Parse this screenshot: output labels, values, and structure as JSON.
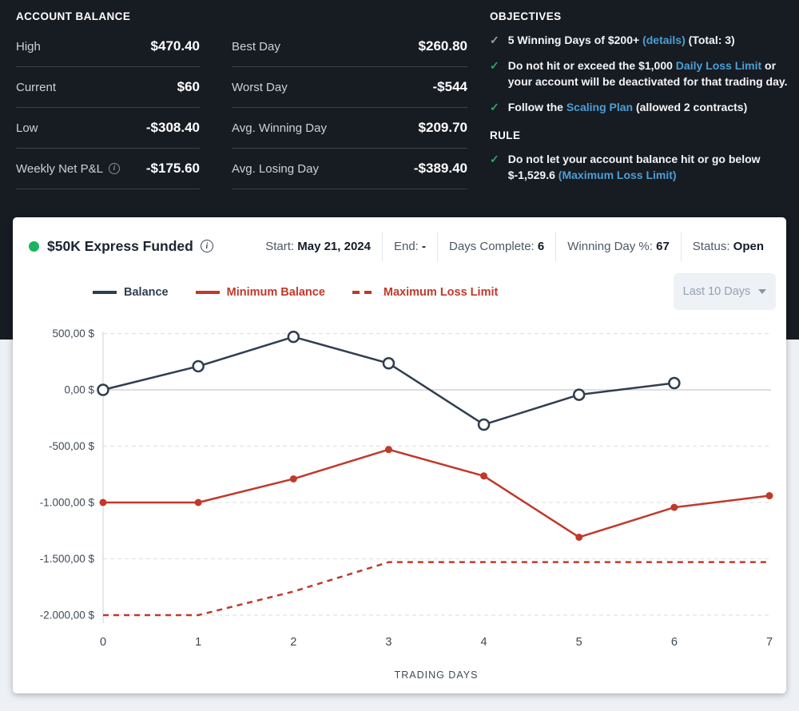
{
  "account_balance": {
    "title": "ACCOUNT BALANCE",
    "left_rows": [
      {
        "label": "High",
        "value": "$470.40"
      },
      {
        "label": "Current",
        "value": "$60"
      },
      {
        "label": "Low",
        "value": "-$308.40"
      },
      {
        "label": "Weekly Net P&L",
        "value": "-$175.60"
      }
    ],
    "right_rows": [
      {
        "label": "Best Day",
        "value": "$260.80"
      },
      {
        "label": "Worst Day",
        "value": "-$544"
      },
      {
        "label": "Avg. Winning Day",
        "value": "$209.70"
      },
      {
        "label": "Avg. Losing Day",
        "value": "-$389.40"
      }
    ]
  },
  "objectives": {
    "title": "OBJECTIVES",
    "items": [
      {
        "check": "gray",
        "parts": {
          "0": "5 Winning Days of $200+ ",
          "link": "(details)",
          "2": " (Total: 3)"
        }
      },
      {
        "check": "green",
        "parts": {
          "0": "Do not hit or exceed the $1,000 ",
          "link": "Daily Loss Limit",
          "2": " or your account will be deactivated for that trading day."
        }
      },
      {
        "check": "green",
        "parts": {
          "0": "Follow the ",
          "link": "Scaling Plan",
          "2": " (allowed 2 contracts)"
        }
      }
    ],
    "rule_title": "RULE",
    "rule_item": {
      "check": "green",
      "parts": {
        "0": "Do not let your account balance hit or go below $-1,529.6 ",
        "link": "(Maximum Loss Limit)"
      }
    }
  },
  "panel": {
    "status_dot_color": "#1cb35e",
    "title": "$50K Express Funded",
    "meta": [
      {
        "label": "Start: ",
        "value": "May 21, 2024"
      },
      {
        "label": "End: ",
        "value": "-"
      },
      {
        "label": "Days Complete: ",
        "value": "6"
      },
      {
        "label": "Winning Day %: ",
        "value": "67"
      },
      {
        "label": "Status: ",
        "value": "Open"
      }
    ],
    "legend": [
      {
        "label": "Balance",
        "color": "#2f3e4f",
        "dashed": false
      },
      {
        "label": "Minimum Balance",
        "color": "#c0392b",
        "dashed": false
      },
      {
        "label": "Maximum Loss Limit",
        "color": "#c0392b",
        "dashed": true
      }
    ],
    "range_selector": "Last 10 Days"
  },
  "chart_data": {
    "type": "line",
    "xlabel": "TRADING DAYS",
    "x_ticks": [
      0,
      1,
      2,
      3,
      4,
      5,
      6,
      7
    ],
    "xlim": [
      0,
      7
    ],
    "ylim": [
      -2000,
      500
    ],
    "grid": "dashed horizontal, solid zero line",
    "y_ticks": [
      {
        "value": 500,
        "label": "500,00 $"
      },
      {
        "value": 0,
        "label": "0,00 $"
      },
      {
        "value": -500,
        "label": "-500,00 $"
      },
      {
        "value": -1000,
        "label": "-1.000,00 $"
      },
      {
        "value": -1500,
        "label": "-1.500,00 $"
      },
      {
        "value": -2000,
        "label": "-2.000,00 $"
      }
    ],
    "series": [
      {
        "name": "Balance",
        "color": "#2f3e4f",
        "marker": "open-circle",
        "dashed": false,
        "x": [
          0,
          1,
          2,
          3,
          4,
          5,
          6
        ],
        "values": [
          0,
          209.6,
          470.4,
          235.6,
          -308.4,
          -43.2,
          60
        ]
      },
      {
        "name": "Minimum Balance",
        "color": "#c0392b",
        "marker": "filled-circle",
        "dashed": false,
        "x": [
          0,
          1,
          2,
          3,
          4,
          5,
          6,
          7
        ],
        "values": [
          -1000,
          -1000,
          -790.4,
          -529.6,
          -764.4,
          -1308.4,
          -1043.2,
          -940
        ]
      },
      {
        "name": "Maximum Loss Limit",
        "color": "#c0392b",
        "marker": "none",
        "dashed": true,
        "x": [
          0,
          1,
          2,
          3,
          4,
          5,
          6,
          7
        ],
        "values": [
          -2000,
          -2000,
          -1790.4,
          -1529.6,
          -1529.6,
          -1529.6,
          -1529.6,
          -1529.6
        ]
      }
    ]
  }
}
